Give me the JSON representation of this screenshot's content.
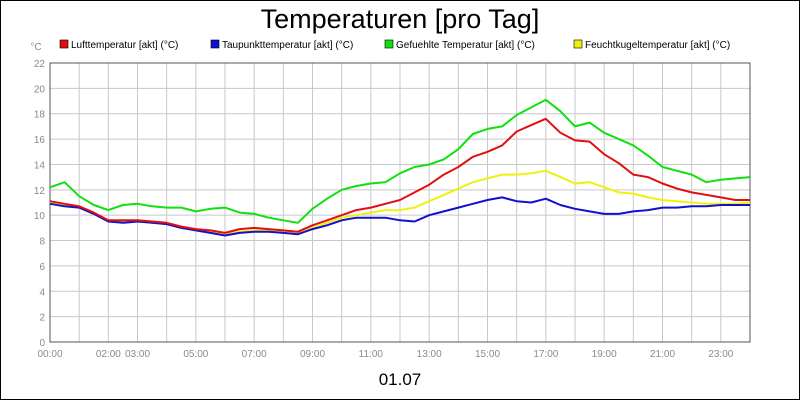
{
  "chart_data": {
    "type": "line",
    "title": "Temperaturen [pro Tag]",
    "ylabel": "°C",
    "xlabel": "01.07",
    "xlim": [
      0,
      24
    ],
    "ylim": [
      0,
      22
    ],
    "yticks": [
      0,
      2,
      4,
      6,
      8,
      10,
      12,
      14,
      16,
      18,
      20,
      22
    ],
    "xticks": [
      {
        "h": 0,
        "label": "00:00"
      },
      {
        "h": 2,
        "label": "02:00"
      },
      {
        "h": 3,
        "label": "03:00"
      },
      {
        "h": 5,
        "label": "05:00"
      },
      {
        "h": 7,
        "label": "07:00"
      },
      {
        "h": 9,
        "label": "09:00"
      },
      {
        "h": 11,
        "label": "11:00"
      },
      {
        "h": 13,
        "label": "13:00"
      },
      {
        "h": 15,
        "label": "15:00"
      },
      {
        "h": 17,
        "label": "17:00"
      },
      {
        "h": 19,
        "label": "19:00"
      },
      {
        "h": 21,
        "label": "21:00"
      },
      {
        "h": 23,
        "label": "23:00"
      }
    ],
    "grid": true,
    "legend_position": "top",
    "x": [
      0,
      0.5,
      1,
      1.5,
      2,
      2.5,
      3,
      3.5,
      4,
      4.5,
      5,
      5.5,
      6,
      6.5,
      7,
      7.5,
      8,
      8.5,
      9,
      9.5,
      10,
      10.5,
      11,
      11.5,
      12,
      12.5,
      13,
      13.5,
      14,
      14.5,
      15,
      15.5,
      16,
      16.5,
      17,
      17.5,
      18,
      18.5,
      19,
      19.5,
      20,
      20.5,
      21,
      21.5,
      22,
      22.5,
      23,
      23.5,
      24
    ],
    "series": [
      {
        "name": "Lufttemperatur [akt] (°C)",
        "color": "#e01010",
        "values": [
          11.1,
          10.9,
          10.7,
          10.2,
          9.6,
          9.6,
          9.6,
          9.5,
          9.4,
          9.1,
          8.9,
          8.8,
          8.6,
          8.9,
          9.0,
          8.9,
          8.8,
          8.7,
          9.2,
          9.6,
          10.0,
          10.4,
          10.6,
          10.9,
          11.2,
          11.8,
          12.4,
          13.2,
          13.8,
          14.6,
          15.0,
          15.5,
          16.6,
          17.1,
          17.6,
          16.5,
          15.9,
          15.8,
          14.8,
          14.1,
          13.2,
          13.0,
          12.5,
          12.1,
          11.8,
          11.6,
          11.4,
          11.2,
          11.2
        ]
      },
      {
        "name": "Taupunkttemperatur [akt] (°C)",
        "color": "#1010d0",
        "values": [
          10.9,
          10.7,
          10.6,
          10.1,
          9.5,
          9.4,
          9.5,
          9.4,
          9.3,
          9.0,
          8.8,
          8.6,
          8.4,
          8.6,
          8.7,
          8.7,
          8.6,
          8.5,
          8.9,
          9.2,
          9.6,
          9.8,
          9.8,
          9.8,
          9.6,
          9.5,
          10.0,
          10.3,
          10.6,
          10.9,
          11.2,
          11.4,
          11.1,
          11.0,
          11.3,
          10.8,
          10.5,
          10.3,
          10.1,
          10.1,
          10.3,
          10.4,
          10.6,
          10.6,
          10.7,
          10.7,
          10.8,
          10.8,
          10.8
        ]
      },
      {
        "name": "Gefuehlte Temperatur [akt] (°C)",
        "color": "#10e010",
        "values": [
          12.2,
          12.6,
          11.5,
          10.8,
          10.4,
          10.8,
          10.9,
          10.7,
          10.6,
          10.6,
          10.3,
          10.5,
          10.6,
          10.2,
          10.1,
          9.8,
          9.6,
          9.4,
          10.5,
          11.3,
          12.0,
          12.3,
          12.5,
          12.6,
          13.3,
          13.8,
          14.0,
          14.4,
          15.2,
          16.4,
          16.8,
          17.0,
          17.9,
          18.5,
          19.1,
          18.2,
          17.0,
          17.3,
          16.5,
          16.0,
          15.5,
          14.7,
          13.8,
          13.5,
          13.2,
          12.6,
          12.8,
          12.9,
          13.0
        ]
      },
      {
        "name": "Feuchtkugeltemperatur [akt] (°C)",
        "color": "#f0f010",
        "values": [
          11.0,
          10.8,
          10.6,
          10.1,
          9.6,
          9.5,
          9.5,
          9.4,
          9.3,
          9.0,
          8.9,
          8.7,
          8.5,
          8.7,
          8.8,
          8.8,
          8.7,
          8.6,
          9.0,
          9.4,
          9.8,
          10.0,
          10.2,
          10.4,
          10.4,
          10.6,
          11.1,
          11.6,
          12.1,
          12.6,
          12.9,
          13.2,
          13.2,
          13.3,
          13.5,
          13.0,
          12.5,
          12.6,
          12.2,
          11.8,
          11.7,
          11.4,
          11.2,
          11.1,
          11.0,
          10.9,
          10.9,
          10.9,
          11.0
        ]
      }
    ]
  }
}
